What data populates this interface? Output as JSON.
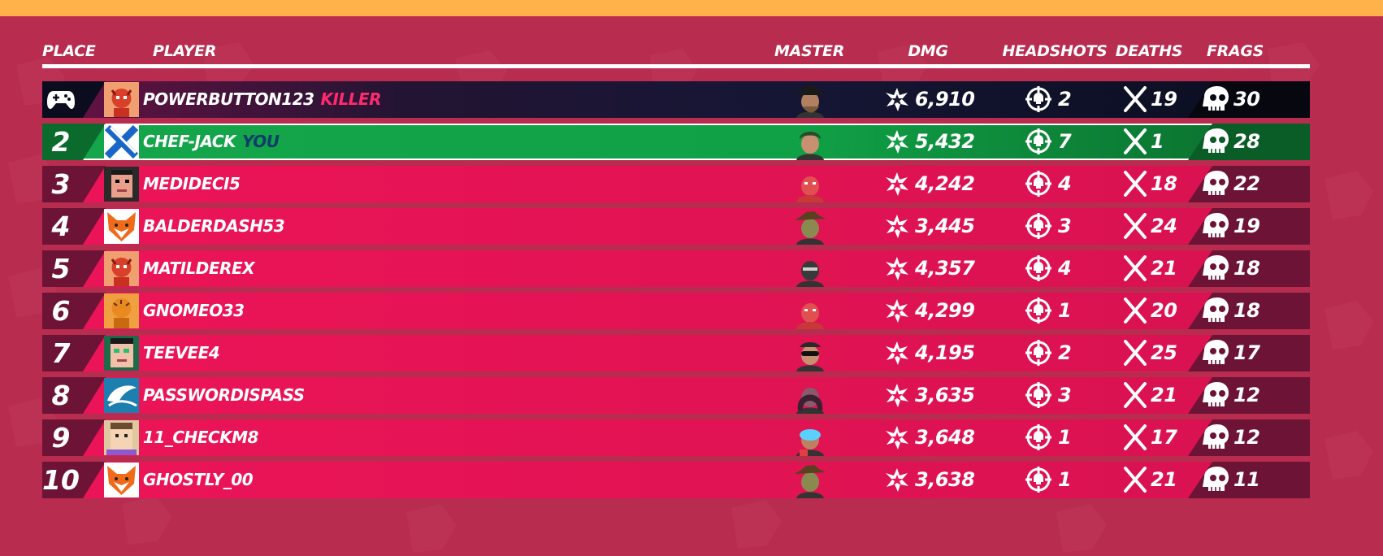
{
  "headers": {
    "place": "PLACE",
    "player": "PLAYER",
    "master": "MASTER",
    "dmg": "DMG",
    "headshots": "HEADSHOTS",
    "deaths": "DEATHS",
    "frags": "FRAGS"
  },
  "colors": {
    "background": "#b82c4f",
    "top_bar": "#ffb14a",
    "row": "#ec1458",
    "killer_row": "#141634",
    "you_row": "#15a64b",
    "killer_tag": "#ff2a6d",
    "you_tag": "#0d3f66"
  },
  "rows": [
    {
      "place": "",
      "place_icon": "gamepad-icon",
      "avatar": "red-devil-avatar",
      "player": "POWERBUTTON123",
      "tag": "KILLER",
      "master": "pirate-master",
      "dmg": "6,910",
      "headshots": "2",
      "deaths": "19",
      "frags": "30"
    },
    {
      "place": "2",
      "avatar": "blue-x-avatar",
      "player": "CHEF-JACK",
      "tag": "YOU",
      "master": "rogue-master",
      "dmg": "5,432",
      "headshots": "7",
      "deaths": "1",
      "frags": "28"
    },
    {
      "place": "3",
      "avatar": "pixel-face-avatar",
      "player": "MEDIDECI5",
      "tag": "",
      "master": "brute-master",
      "dmg": "4,242",
      "headshots": "4",
      "deaths": "18",
      "frags": "22"
    },
    {
      "place": "4",
      "avatar": "fox-avatar",
      "player": "BALDERDASH53",
      "tag": "",
      "master": "cowboy-master",
      "dmg": "3,445",
      "headshots": "3",
      "deaths": "24",
      "frags": "19"
    },
    {
      "place": "5",
      "avatar": "red-devil-avatar",
      "player": "MATILDEREX",
      "tag": "",
      "master": "ninja-master",
      "dmg": "4,357",
      "headshots": "4",
      "deaths": "21",
      "frags": "18"
    },
    {
      "place": "6",
      "avatar": "tiger-avatar",
      "player": "GNOMEO33",
      "tag": "",
      "master": "brute-master",
      "dmg": "4,299",
      "headshots": "1",
      "deaths": "20",
      "frags": "18"
    },
    {
      "place": "7",
      "avatar": "green-face-avatar",
      "player": "TEEVEE4",
      "tag": "",
      "master": "shades-master",
      "dmg": "4,195",
      "headshots": "2",
      "deaths": "25",
      "frags": "17"
    },
    {
      "place": "8",
      "avatar": "shark-avatar",
      "player": "PASSWORDISPASS",
      "tag": "",
      "master": "hood-master",
      "dmg": "3,635",
      "headshots": "3",
      "deaths": "21",
      "frags": "12"
    },
    {
      "place": "9",
      "avatar": "pixel-guy-avatar",
      "player": "11_CHECKM8",
      "tag": "",
      "master": "goggles-master",
      "dmg": "3,648",
      "headshots": "1",
      "deaths": "17",
      "frags": "12"
    },
    {
      "place": "10",
      "avatar": "fox-avatar",
      "player": "GHOSTLY_00",
      "tag": "",
      "master": "cowboy-master",
      "dmg": "3,638",
      "headshots": "1",
      "deaths": "21",
      "frags": "11"
    }
  ]
}
